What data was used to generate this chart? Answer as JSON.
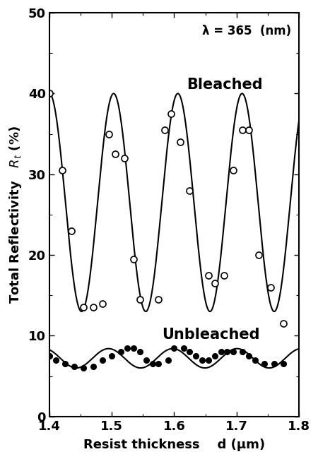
{
  "title": "",
  "xlabel": "Resist thickness    d (μm)",
  "ylabel": "Total Reflectivity   R$_t$ (%)",
  "xlim": [
    1.4,
    1.8
  ],
  "ylim": [
    0,
    50
  ],
  "xticks": [
    1.4,
    1.5,
    1.6,
    1.7,
    1.8
  ],
  "yticks": [
    0,
    10,
    20,
    30,
    40,
    50
  ],
  "lambda_text": "λ = 365  (nm)",
  "bleached_label": "Bleached",
  "unbleached_label": "Unbleached",
  "bleached_open_x": [
    1.4,
    1.42,
    1.435,
    1.455,
    1.47,
    1.485,
    1.495,
    1.505,
    1.52,
    1.535,
    1.545,
    1.575,
    1.585,
    1.595,
    1.61,
    1.625,
    1.655,
    1.665,
    1.68,
    1.695,
    1.71,
    1.72,
    1.735,
    1.755,
    1.775
  ],
  "bleached_open_y": [
    40.0,
    30.5,
    23.0,
    13.5,
    13.5,
    14.0,
    35.0,
    32.5,
    32.0,
    19.5,
    14.5,
    14.5,
    35.5,
    37.5,
    34.0,
    28.0,
    17.5,
    16.5,
    17.5,
    30.5,
    35.5,
    35.5,
    20.0,
    16.0,
    11.5
  ],
  "unbleached_filled_x": [
    1.4,
    1.41,
    1.425,
    1.44,
    1.455,
    1.47,
    1.485,
    1.5,
    1.515,
    1.525,
    1.535,
    1.545,
    1.555,
    1.565,
    1.575,
    1.59,
    1.6,
    1.615,
    1.625,
    1.635,
    1.645,
    1.655,
    1.665,
    1.675,
    1.685,
    1.695,
    1.71,
    1.72,
    1.73,
    1.745,
    1.76,
    1.775
  ],
  "unbleached_filled_y": [
    7.5,
    7.0,
    6.5,
    6.2,
    6.0,
    6.2,
    7.0,
    7.5,
    8.0,
    8.5,
    8.5,
    8.0,
    7.0,
    6.5,
    6.5,
    7.0,
    8.5,
    8.5,
    8.0,
    7.5,
    7.0,
    7.0,
    7.5,
    8.0,
    8.0,
    8.0,
    8.0,
    7.5,
    7.0,
    6.5,
    6.5,
    6.5
  ],
  "bleached_period": 0.103,
  "bleached_mean": 26.5,
  "bleached_amp": 13.5,
  "unbleached_mean": 7.2,
  "unbleached_amp": 1.2,
  "unbleached_phase": 0.5,
  "bg_color": "#ffffff",
  "line_color": "#000000",
  "marker_open_color": "#ffffff",
  "marker_filled_color": "#000000",
  "marker_edge_color": "#000000",
  "figwidth": 4.5,
  "figheight": 6.5,
  "dpi": 100
}
